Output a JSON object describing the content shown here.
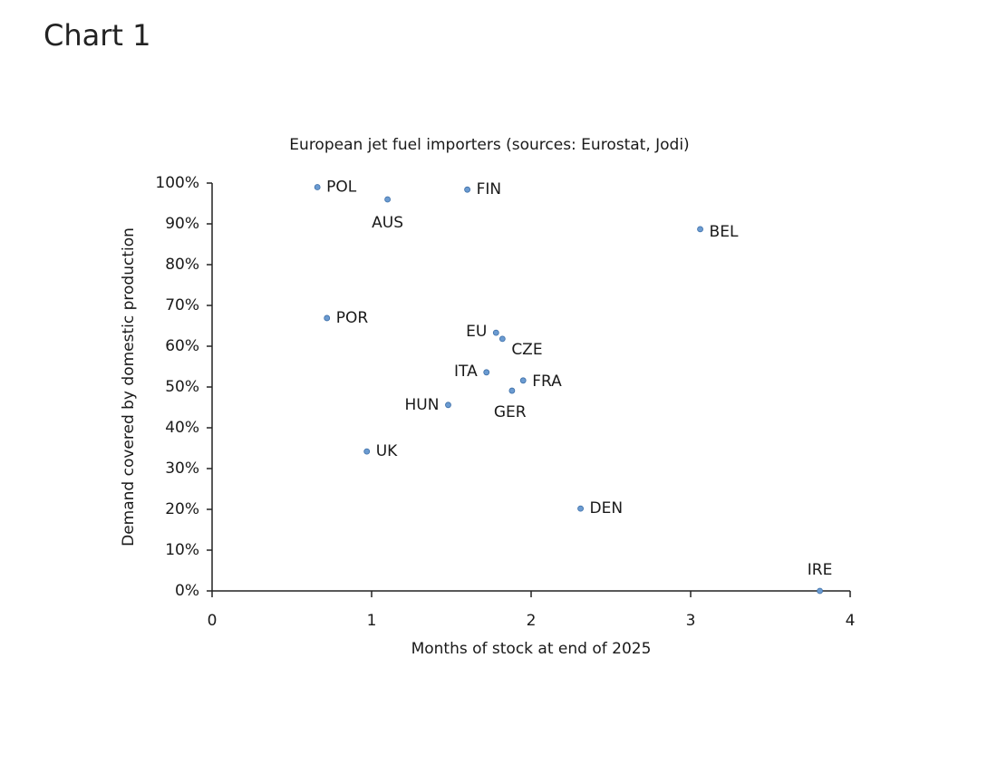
{
  "heading": "Chart 1",
  "chart_data": {
    "type": "scatter",
    "title": "European jet fuel importers (sources: Eurostat, Jodi)",
    "xlabel": "Months of stock at end of 2025",
    "ylabel": "Demand covered by domestic production",
    "point_labels": [
      "POL",
      "FIN",
      "AUS",
      "BEL",
      "POR",
      "EU",
      "CZE",
      "ITA",
      "FRA",
      "GER",
      "HUN",
      "UK",
      "DEN",
      "IRE"
    ],
    "x": [
      0.66,
      1.6,
      1.1,
      3.06,
      0.72,
      1.78,
      1.82,
      1.72,
      1.95,
      1.88,
      1.48,
      0.97,
      2.31,
      3.81
    ],
    "values": [
      99,
      98.4,
      96,
      88.7,
      66.9,
      63.3,
      61.8,
      53.6,
      51.6,
      49.1,
      45.6,
      34.2,
      20.2,
      0
    ],
    "color": "#6b9bd1",
    "xlim": [
      0,
      4
    ],
    "xticks": [
      0,
      1,
      2,
      3,
      4
    ],
    "ylim": [
      0,
      100
    ],
    "yticks": [
      {
        "value": 0,
        "label": "0%"
      },
      {
        "value": 10,
        "label": "10%"
      },
      {
        "value": 20,
        "label": "20%"
      },
      {
        "value": 30,
        "label": "30%"
      },
      {
        "value": 40,
        "label": "40%"
      },
      {
        "value": 50,
        "label": "50%"
      },
      {
        "value": 60,
        "label": "60%"
      },
      {
        "value": 70,
        "label": "70%"
      },
      {
        "value": 80,
        "label": "80%"
      },
      {
        "value": 90,
        "label": "90%"
      },
      {
        "value": 100,
        "label": "100%"
      }
    ],
    "grid": false
  }
}
